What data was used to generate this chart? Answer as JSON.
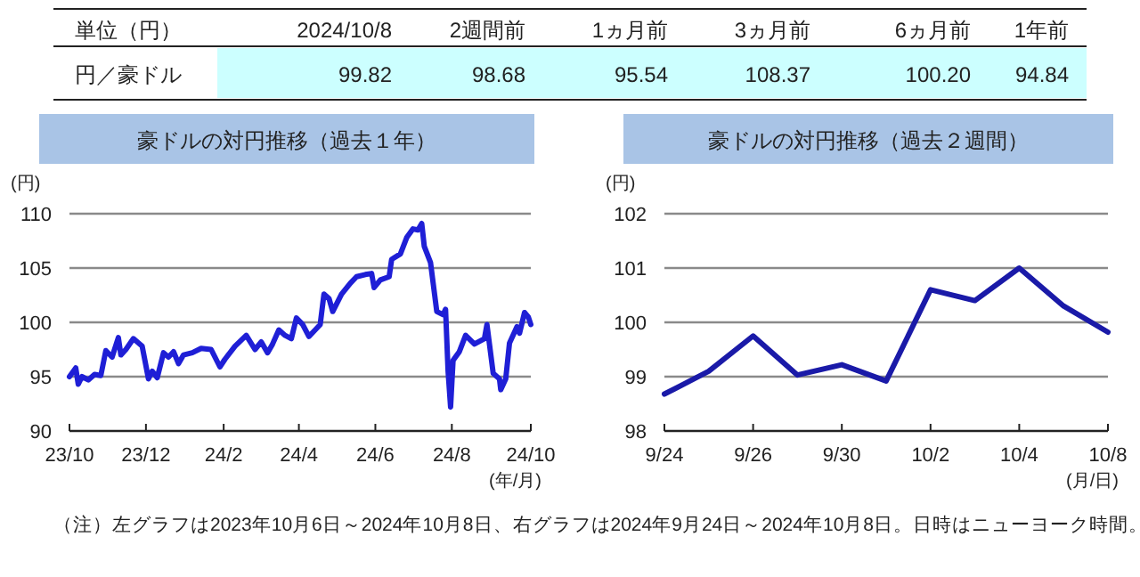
{
  "chart_data": [
    {
      "type": "other",
      "title": "単位（円）",
      "ylabel": "円／豪ドル",
      "categories": [
        "2024/10/8",
        "2週間前",
        "1ヵ月前",
        "3ヵ月前",
        "6ヵ月前",
        "1年前"
      ],
      "value_labels": [
        "99.82",
        "98.68",
        "95.54",
        "108.37",
        "100.20",
        "94.84"
      ],
      "annotations": [
        "（注）左グラフは2023年10月6日～2024年10月8日、右グラフは2024年9月24日～2024年10月8日。日時はニューヨーク時間。"
      ]
    },
    {
      "type": "line",
      "title": "豪ドルの対円推移（過去１年）",
      "ylabel": "(円)",
      "xlabel": "(年/月)",
      "xlim": [
        "2023-10-06",
        "2024-10-08"
      ],
      "ylim": [
        90,
        110
      ],
      "yticks": [
        90,
        95,
        100,
        105,
        110
      ],
      "xticks": [
        {
          "value": "2023-10-06",
          "label": "23/10"
        },
        {
          "value": "2023-12-06",
          "label": "23/12"
        },
        {
          "value": "2024-02-06",
          "label": "24/2"
        },
        {
          "value": "2024-04-06",
          "label": "24/4"
        },
        {
          "value": "2024-06-06",
          "label": "24/6"
        },
        {
          "value": "2024-08-06",
          "label": "24/8"
        },
        {
          "value": "2024-10-08",
          "label": "24/10"
        }
      ],
      "grid": "y",
      "x": [
        "2023-10-06",
        "2023-10-11",
        "2023-10-13",
        "2023-10-16",
        "2023-10-21",
        "2023-10-26",
        "2023-10-31",
        "2023-11-04",
        "2023-11-09",
        "2023-11-14",
        "2023-11-16",
        "2023-11-20",
        "2023-11-26",
        "2023-12-03",
        "2023-12-08",
        "2023-12-11",
        "2023-12-15",
        "2023-12-20",
        "2023-12-24",
        "2023-12-28",
        "2024-01-01",
        "2024-01-05",
        "2024-01-12",
        "2024-01-19",
        "2024-01-27",
        "2024-02-03",
        "2024-02-07",
        "2024-02-15",
        "2024-02-24",
        "2024-03-02",
        "2024-03-07",
        "2024-03-12",
        "2024-03-16",
        "2024-03-21",
        "2024-03-26",
        "2024-03-31",
        "2024-04-04",
        "2024-04-09",
        "2024-04-14",
        "2024-04-19",
        "2024-04-23",
        "2024-04-26",
        "2024-04-30",
        "2024-05-03",
        "2024-05-10",
        "2024-05-17",
        "2024-05-22",
        "2024-05-29",
        "2024-06-03",
        "2024-06-05",
        "2024-06-10",
        "2024-06-17",
        "2024-06-19",
        "2024-06-26",
        "2024-07-01",
        "2024-07-06",
        "2024-07-10",
        "2024-07-13",
        "2024-07-15",
        "2024-07-20",
        "2024-07-25",
        "2024-07-30",
        "2024-08-01",
        "2024-08-03",
        "2024-08-05",
        "2024-08-07",
        "2024-08-12",
        "2024-08-17",
        "2024-08-24",
        "2024-09-01",
        "2024-09-03",
        "2024-09-08",
        "2024-09-13",
        "2024-09-14",
        "2024-09-18",
        "2024-09-21",
        "2024-09-27",
        "2024-09-29",
        "2024-10-03",
        "2024-10-06",
        "2024-10-08"
      ],
      "series": [
        {
          "color": "#1f1fd6",
          "values": [
            95.0,
            95.8,
            94.3,
            95.0,
            94.7,
            95.2,
            95.1,
            97.4,
            96.8,
            98.6,
            97.0,
            97.5,
            98.5,
            97.8,
            94.8,
            95.5,
            94.9,
            97.2,
            96.8,
            97.3,
            96.2,
            97.0,
            97.2,
            97.6,
            97.5,
            95.9,
            96.6,
            97.8,
            98.8,
            97.5,
            98.2,
            97.2,
            98.0,
            99.3,
            98.8,
            98.5,
            100.4,
            99.8,
            98.7,
            99.3,
            99.8,
            102.6,
            102.2,
            101.0,
            102.6,
            103.6,
            104.2,
            104.4,
            104.5,
            103.2,
            103.9,
            104.2,
            105.8,
            106.3,
            107.8,
            108.6,
            108.5,
            109.1,
            107.0,
            105.5,
            101.0,
            100.7,
            101.2,
            95.5,
            92.2,
            96.5,
            97.3,
            98.8,
            98.0,
            98.5,
            99.8,
            95.3,
            94.8,
            93.8,
            94.8,
            98.1,
            99.6,
            99.0,
            100.9,
            100.5,
            99.8
          ]
        }
      ]
    },
    {
      "type": "line",
      "title": "豪ドルの対円推移（過去２週間）",
      "ylabel": "(円)",
      "xlabel": "(月/日)",
      "categories": [
        "9/24",
        null,
        "9/26",
        null,
        "9/30",
        null,
        "10/2",
        null,
        "10/4",
        null,
        "10/8"
      ],
      "ylim": [
        98,
        102
      ],
      "yticks": [
        98,
        99,
        100,
        101,
        102
      ],
      "grid": "y",
      "series": [
        {
          "color": "#1a1aa8",
          "values": [
            98.68,
            99.1,
            99.75,
            99.03,
            99.22,
            98.92,
            100.6,
            100.4,
            101.0,
            100.3,
            99.82
          ]
        }
      ]
    }
  ]
}
